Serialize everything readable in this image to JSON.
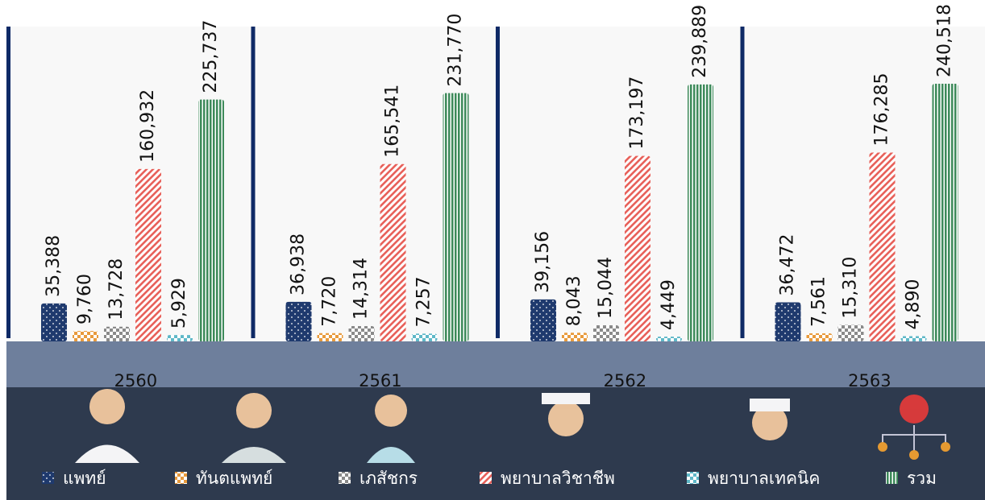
{
  "chart_data": {
    "type": "bar",
    "categories": [
      "2560",
      "2561",
      "2562",
      "2563"
    ],
    "series": [
      {
        "name": "แพทย์",
        "color": "#1f3a6e",
        "values": [
          35388,
          36938,
          39156,
          36472
        ],
        "value_labels": [
          "35,388",
          "36,938",
          "39,156",
          "36,472"
        ]
      },
      {
        "name": "ทันตแพทย์",
        "color": "#e89a3c",
        "values": [
          9760,
          7720,
          8043,
          7561
        ],
        "value_labels": [
          "9,760",
          "7,720",
          "8,043",
          "7,561"
        ]
      },
      {
        "name": "เภสัชกร",
        "color": "#8a8a8a",
        "values": [
          13728,
          14314,
          15044,
          15310
        ],
        "value_labels": [
          "13,728",
          "14,314",
          "15,044",
          "15,310"
        ]
      },
      {
        "name": "พยาบาลวิชาชีพ",
        "color": "#e8615a",
        "values": [
          160932,
          165541,
          173197,
          176285
        ],
        "value_labels": [
          "160,932",
          "165,541",
          "173,197",
          "176,285"
        ]
      },
      {
        "name": "พยาบาลเทคนิค",
        "color": "#5fb8c8",
        "values": [
          5929,
          7257,
          4449,
          4890
        ],
        "value_labels": [
          "5,929",
          "7,257",
          "4,449",
          "4,890"
        ]
      },
      {
        "name": "รวม",
        "color": "#3d8a5a",
        "values": [
          225737,
          231770,
          239889,
          240518
        ],
        "value_labels": [
          "225,737",
          "231,770",
          "239,889",
          "240,518"
        ]
      }
    ]
  }
}
